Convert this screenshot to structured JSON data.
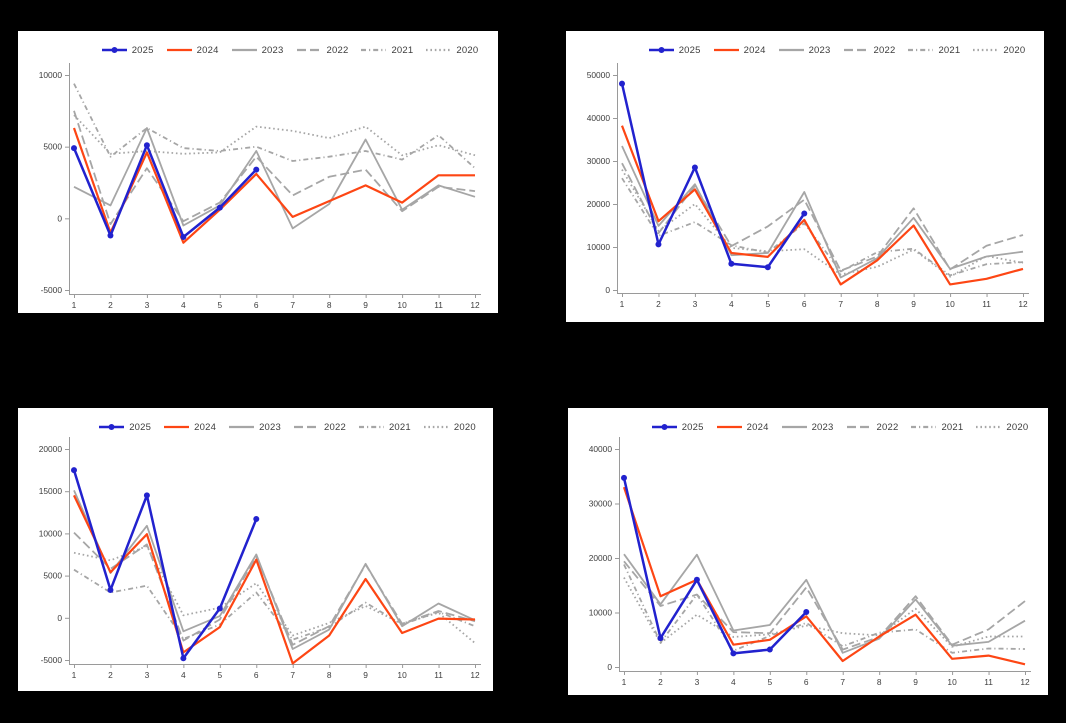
{
  "figure": {
    "background": "#000000",
    "panel_background": "#ffffff",
    "accent_blue": "#2222ce",
    "accent_orange": "#fd4614",
    "line_gray": "#a6a6a6",
    "axis_color": "#9a9a9a",
    "text_color": "#3d3d3d"
  },
  "chart_data": [
    {
      "type": "line",
      "position": "top-left",
      "legend_position": "top-center",
      "grid": false,
      "xlabel": "",
      "ylabel": "",
      "xticks": [
        "1",
        "2",
        "3",
        "4",
        "5",
        "6",
        "7",
        "8",
        "9",
        "10",
        "11",
        "12"
      ],
      "yticks": [
        -5000,
        0,
        5000,
        10000
      ],
      "ytick_labels": [
        "-5000",
        "0",
        "5000",
        "10000"
      ],
      "ylim": [
        -5000,
        10000
      ],
      "series": [
        {
          "name": "2025",
          "color": "#2222ce",
          "line": "solid",
          "marker": "circle",
          "values": [
            4900,
            -1200,
            5100,
            -1300,
            750,
            3400
          ]
        },
        {
          "name": "2024",
          "color": "#fd4614",
          "line": "solid",
          "marker": "none",
          "values": [
            6300,
            -1000,
            4600,
            -1700,
            600,
            3100,
            100,
            1200,
            2300,
            1100,
            3000,
            3000
          ]
        },
        {
          "name": "2023",
          "color": "#a6a6a6",
          "line": "solid",
          "marker": "none",
          "values": [
            2200,
            900,
            6300,
            -500,
            900,
            4700,
            -700,
            1000,
            5500,
            600,
            2300,
            1500
          ]
        },
        {
          "name": "2022",
          "color": "#a6a6a6",
          "line": "long-dash",
          "marker": "none",
          "values": [
            7500,
            -400,
            3500,
            -200,
            1100,
            4300,
            1600,
            2900,
            3400,
            500,
            2200,
            1900
          ]
        },
        {
          "name": "2021",
          "color": "#a6a6a6",
          "line": "dash-dot",
          "marker": "none",
          "values": [
            9400,
            4300,
            6300,
            4900,
            4700,
            5000,
            4000,
            4300,
            4700,
            4100,
            5800,
            3500
          ]
        },
        {
          "name": "2020",
          "color": "#a6a6a6",
          "line": "dotted",
          "marker": "none",
          "values": [
            7200,
            4500,
            4700,
            4500,
            4600,
            6400,
            6100,
            5600,
            6400,
            4400,
            5100,
            4400
          ]
        }
      ]
    },
    {
      "type": "line",
      "position": "top-right",
      "legend_position": "top-center",
      "grid": false,
      "xlabel": "",
      "ylabel": "",
      "xticks": [
        "1",
        "2",
        "3",
        "4",
        "5",
        "6",
        "7",
        "8",
        "9",
        "10",
        "11",
        "12"
      ],
      "yticks": [
        0,
        10000,
        20000,
        30000,
        40000,
        50000
      ],
      "ytick_labels": [
        "0",
        "10000",
        "20000",
        "30000",
        "40000",
        "50000"
      ],
      "ylim": [
        0,
        50000
      ],
      "series": [
        {
          "name": "2025",
          "color": "#2222ce",
          "line": "solid",
          "marker": "circle",
          "values": [
            48000,
            10600,
            28500,
            6100,
            5300,
            17800
          ]
        },
        {
          "name": "2024",
          "color": "#fd4614",
          "line": "solid",
          "marker": "none",
          "values": [
            38200,
            16000,
            23400,
            8600,
            7700,
            16300,
            1300,
            6900,
            15000,
            1300,
            2600,
            4900
          ]
        },
        {
          "name": "2023",
          "color": "#a6a6a6",
          "line": "solid",
          "marker": "none",
          "values": [
            33500,
            14900,
            24600,
            8100,
            8600,
            22800,
            2900,
            7400,
            16800,
            4900,
            7800,
            8900
          ]
        },
        {
          "name": "2022",
          "color": "#a6a6a6",
          "line": "long-dash",
          "marker": "none",
          "values": [
            29500,
            13200,
            24200,
            10200,
            14800,
            21000,
            4500,
            7800,
            19000,
            4800,
            10300,
            12800
          ]
        },
        {
          "name": "2021",
          "color": "#a6a6a6",
          "line": "dash-dot",
          "marker": "none",
          "values": [
            26000,
            12600,
            15800,
            10400,
            8700,
            15500,
            4300,
            8800,
            9600,
            3400,
            6000,
            6500
          ]
        },
        {
          "name": "2020",
          "color": "#a6a6a6",
          "line": "dotted",
          "marker": "none",
          "values": [
            28000,
            13700,
            20000,
            9800,
            9000,
            9500,
            3600,
            5400,
            9400,
            3100,
            7900,
            6300
          ]
        }
      ]
    },
    {
      "type": "line",
      "position": "bottom-left",
      "legend_position": "top-center",
      "grid": false,
      "xlabel": "",
      "ylabel": "",
      "xticks": [
        "1",
        "2",
        "3",
        "4",
        "5",
        "6",
        "7",
        "8",
        "9",
        "10",
        "11",
        "12"
      ],
      "yticks": [
        -5000,
        0,
        5000,
        10000,
        15000,
        20000
      ],
      "ytick_labels": [
        "-5000",
        "0",
        "5000",
        "10000",
        "15000",
        "20000"
      ],
      "ylim": [
        -5000,
        20000
      ],
      "series": [
        {
          "name": "2025",
          "color": "#2222ce",
          "line": "solid",
          "marker": "circle",
          "values": [
            17500,
            3300,
            14500,
            -4800,
            1100,
            11700
          ]
        },
        {
          "name": "2024",
          "color": "#fd4614",
          "line": "solid",
          "marker": "none",
          "values": [
            14500,
            5400,
            9900,
            -4100,
            -1100,
            6900,
            -5400,
            -2100,
            4600,
            -1800,
            -100,
            -200
          ]
        },
        {
          "name": "2023",
          "color": "#a6a6a6",
          "line": "solid",
          "marker": "none",
          "values": [
            15100,
            5300,
            10900,
            -1600,
            200,
            7500,
            -3700,
            -1400,
            6400,
            -1000,
            1700,
            -300
          ]
        },
        {
          "name": "2022",
          "color": "#a6a6a6",
          "line": "long-dash",
          "marker": "none",
          "values": [
            10100,
            5800,
            8700,
            -2700,
            -200,
            7300,
            -3200,
            -1000,
            6300,
            -700,
            800,
            -400
          ]
        },
        {
          "name": "2021",
          "color": "#a6a6a6",
          "line": "dash-dot",
          "marker": "none",
          "values": [
            5700,
            3000,
            3800,
            -2500,
            -800,
            3000,
            -2600,
            -1100,
            1800,
            -800,
            700,
            -1000
          ]
        },
        {
          "name": "2020",
          "color": "#a6a6a6",
          "line": "dotted",
          "marker": "none",
          "values": [
            7700,
            6800,
            8500,
            300,
            1200,
            4100,
            -2100,
            -600,
            1400,
            -700,
            600,
            -3000
          ]
        }
      ]
    },
    {
      "type": "line",
      "position": "bottom-right",
      "legend_position": "top-center",
      "grid": false,
      "xlabel": "",
      "ylabel": "",
      "xticks": [
        "1",
        "2",
        "3",
        "4",
        "5",
        "6",
        "7",
        "8",
        "9",
        "10",
        "11",
        "12"
      ],
      "yticks": [
        0,
        10000,
        20000,
        30000,
        40000
      ],
      "ytick_labels": [
        "0",
        "10000",
        "20000",
        "30000",
        "40000"
      ],
      "ylim": [
        0,
        40000
      ],
      "series": [
        {
          "name": "2025",
          "color": "#2222ce",
          "line": "solid",
          "marker": "circle",
          "values": [
            34700,
            5300,
            16000,
            2500,
            3200,
            10100
          ]
        },
        {
          "name": "2024",
          "color": "#fd4614",
          "line": "solid",
          "marker": "none",
          "values": [
            33000,
            13000,
            16000,
            4100,
            5000,
            9300,
            1100,
            5600,
            9600,
            1500,
            2100,
            500
          ]
        },
        {
          "name": "2023",
          "color": "#a6a6a6",
          "line": "solid",
          "marker": "none",
          "values": [
            20700,
            11500,
            20600,
            6700,
            7700,
            16000,
            2600,
            5200,
            12400,
            3900,
            4600,
            8500
          ]
        },
        {
          "name": "2022",
          "color": "#a6a6a6",
          "line": "long-dash",
          "marker": "none",
          "values": [
            19400,
            11200,
            13300,
            6400,
            6200,
            14600,
            3200,
            5500,
            13000,
            4100,
            6900,
            12100
          ]
        },
        {
          "name": "2021",
          "color": "#a6a6a6",
          "line": "dash-dot",
          "marker": "none",
          "values": [
            18800,
            4500,
            13300,
            3000,
            5700,
            8100,
            3800,
            6300,
            6900,
            2600,
            3400,
            3300
          ]
        },
        {
          "name": "2020",
          "color": "#a6a6a6",
          "line": "dotted",
          "marker": "none",
          "values": [
            16400,
            4400,
            9600,
            5500,
            6000,
            7600,
            6200,
            5800,
            10700,
            3700,
            5600,
            5600
          ]
        }
      ]
    }
  ]
}
